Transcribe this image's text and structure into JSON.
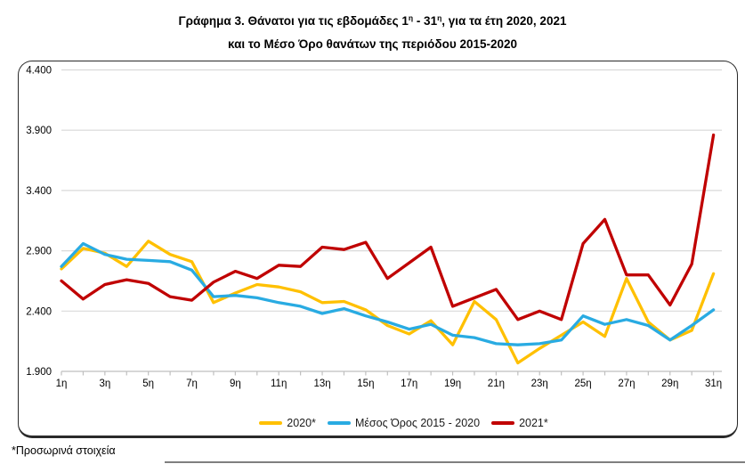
{
  "title": {
    "line1_parts": [
      "Γράφημα 3. Θάνατοι για τις εβδομάδες 1",
      "η",
      " - 31",
      "η",
      ", για τα έτη 2020, 2021"
    ],
    "line2": "και το Μέσο Όρο θανάτων της περιόδου 2015-2020"
  },
  "footnote": "*Προσωρινά στοιχεία",
  "legend": {
    "position": "bottom",
    "items": [
      {
        "label": "2020*",
        "color": "#FFC000"
      },
      {
        "label": "Μέσος Όρος 2015 - 2020",
        "color": "#29ABE2"
      },
      {
        "label": "2021*",
        "color": "#C00000"
      }
    ]
  },
  "colors": {
    "gridline": "#D9D9D9",
    "axis": "#BFBFBF",
    "tick": "#BFBFBF",
    "label": "#000000",
    "series_2020": "#FFC000",
    "series_avg": "#29ABE2",
    "series_2021": "#C00000"
  },
  "chart_data": {
    "type": "line",
    "title": "Γράφημα 3. Θάνατοι για τις εβδομάδες 1η - 31η, για τα έτη 2020, 2021 και το Μέσο Όρο θανάτων της περιόδου 2015-2020",
    "xlabel": "",
    "ylabel": "",
    "ylim": [
      1900,
      4400
    ],
    "grid": true,
    "legend_position": "bottom",
    "yticks": [
      {
        "value": 1900,
        "label": "1.900"
      },
      {
        "value": 2400,
        "label": "2.400"
      },
      {
        "value": 2900,
        "label": "2.900"
      },
      {
        "value": 3400,
        "label": "3.400"
      },
      {
        "value": 3900,
        "label": "3.900"
      },
      {
        "value": 4400,
        "label": "4.400"
      }
    ],
    "x": [
      1,
      2,
      3,
      4,
      5,
      6,
      7,
      8,
      9,
      10,
      11,
      12,
      13,
      14,
      15,
      16,
      17,
      18,
      19,
      20,
      21,
      22,
      23,
      24,
      25,
      26,
      27,
      28,
      29,
      30,
      31
    ],
    "xtick_labels": [
      {
        "week": 1,
        "label": "1η"
      },
      {
        "week": 3,
        "label": "3η"
      },
      {
        "week": 5,
        "label": "5η"
      },
      {
        "week": 7,
        "label": "7η"
      },
      {
        "week": 9,
        "label": "9η"
      },
      {
        "week": 11,
        "label": "11η"
      },
      {
        "week": 13,
        "label": "13η"
      },
      {
        "week": 15,
        "label": "15η"
      },
      {
        "week": 17,
        "label": "17η"
      },
      {
        "week": 19,
        "label": "19η"
      },
      {
        "week": 21,
        "label": "21η"
      },
      {
        "week": 23,
        "label": "23η"
      },
      {
        "week": 25,
        "label": "25η"
      },
      {
        "week": 27,
        "label": "27η"
      },
      {
        "week": 29,
        "label": "29η"
      },
      {
        "week": 31,
        "label": "31η"
      }
    ],
    "series": [
      {
        "name": "2020*",
        "color": "#FFC000",
        "values": [
          2750,
          2920,
          2880,
          2770,
          2980,
          2870,
          2810,
          2470,
          2550,
          2620,
          2600,
          2560,
          2470,
          2480,
          2410,
          2280,
          2210,
          2320,
          2120,
          2480,
          2330,
          1970,
          2090,
          2200,
          2310,
          2190,
          2670,
          2310,
          2160,
          2240,
          2710
        ]
      },
      {
        "name": "Μέσος Όρος 2015 - 2020",
        "color": "#29ABE2",
        "values": [
          2770,
          2960,
          2870,
          2830,
          2820,
          2810,
          2740,
          2520,
          2530,
          2510,
          2470,
          2440,
          2380,
          2420,
          2360,
          2310,
          2250,
          2290,
          2200,
          2180,
          2130,
          2120,
          2130,
          2160,
          2360,
          2290,
          2330,
          2280,
          2160,
          2280,
          2410
        ]
      },
      {
        "name": "2021*",
        "color": "#C00000",
        "values": [
          2650,
          2500,
          2620,
          2660,
          2630,
          2520,
          2490,
          2640,
          2730,
          2670,
          2780,
          2770,
          2930,
          2910,
          2970,
          2670,
          2800,
          2930,
          2440,
          2510,
          2580,
          2330,
          2400,
          2330,
          2960,
          3160,
          2700,
          2700,
          2450,
          2790,
          3860
        ]
      }
    ]
  }
}
